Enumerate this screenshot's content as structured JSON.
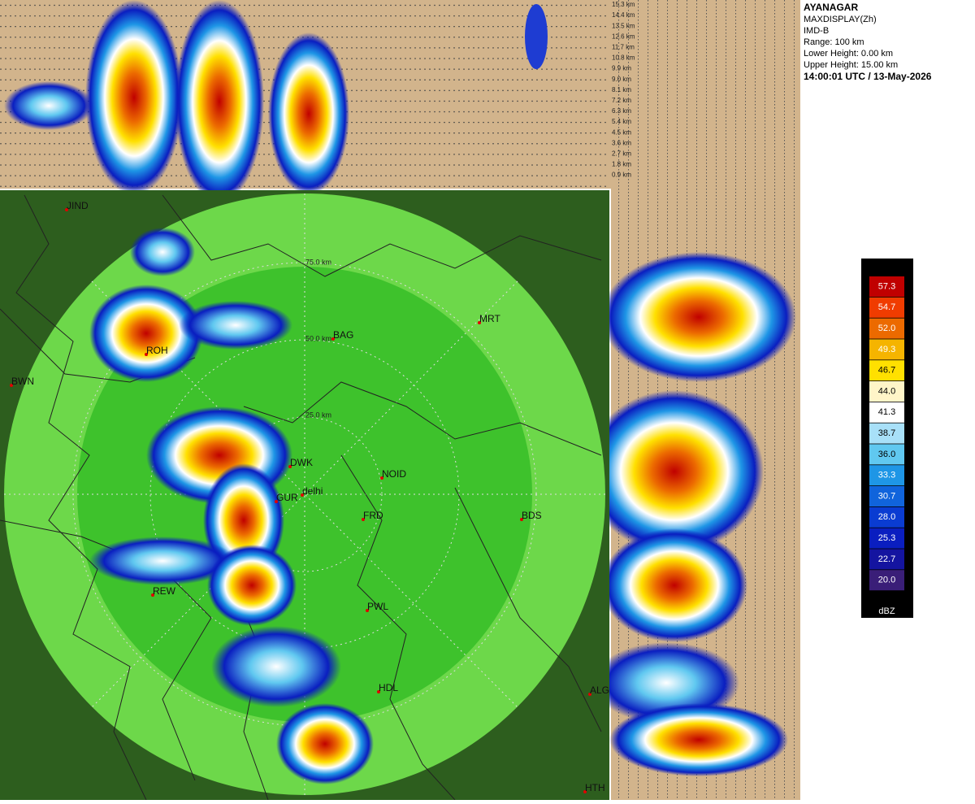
{
  "header": {
    "station": "AYANAGAR",
    "product": "MAXDISPLAY(Zh)",
    "source": "IMD-B",
    "range": "Range: 100 km",
    "lower_height": "Lower Height: 0.00 km",
    "upper_height": "Upper Height: 15.00 km",
    "timestamp": "14:00:01 UTC / 13-May-2026"
  },
  "height_labels": [
    "15.3 km",
    "14.4 km",
    "13.5 km",
    "12.6 km",
    "11.7 km",
    "10.8 km",
    "9.9 km",
    "9.0 km",
    "8.1 km",
    "7.2 km",
    "6.3 km",
    "5.4 km",
    "4.5 km",
    "3.6 km",
    "2.7 km",
    "1.8 km",
    "0.9 km"
  ],
  "range_rings": [
    "75.0 km",
    "50.0 km",
    "25.0 km"
  ],
  "places": [
    "JIND",
    "ROH",
    "BWN",
    "BAG",
    "MRT",
    "DWK",
    "GUR",
    "delhi",
    "NOID",
    "FRD",
    "BDS",
    "REW",
    "PWL",
    "HDL",
    "ALG",
    "HTH"
  ],
  "legend": {
    "unit": "dBZ",
    "items": [
      {
        "label": "57.3",
        "color": "#c00000"
      },
      {
        "label": "54.7",
        "color": "#f03c00"
      },
      {
        "label": "52.0",
        "color": "#ec6a00"
      },
      {
        "label": "49.3",
        "color": "#f5b400"
      },
      {
        "label": "46.7",
        "color": "#ffe000"
      },
      {
        "label": "44.0",
        "color": "#fff5c8"
      },
      {
        "label": "41.3",
        "color": "#ffffff"
      },
      {
        "label": "38.7",
        "color": "#a8e0f8"
      },
      {
        "label": "36.0",
        "color": "#60c8f0"
      },
      {
        "label": "33.3",
        "color": "#1e96e6"
      },
      {
        "label": "30.7",
        "color": "#1064dc"
      },
      {
        "label": "28.0",
        "color": "#0a3cd2"
      },
      {
        "label": "25.3",
        "color": "#0a1ec0"
      },
      {
        "label": "22.7",
        "color": "#1414a0"
      },
      {
        "label": "20.0",
        "color": "#3a1e78"
      }
    ]
  }
}
